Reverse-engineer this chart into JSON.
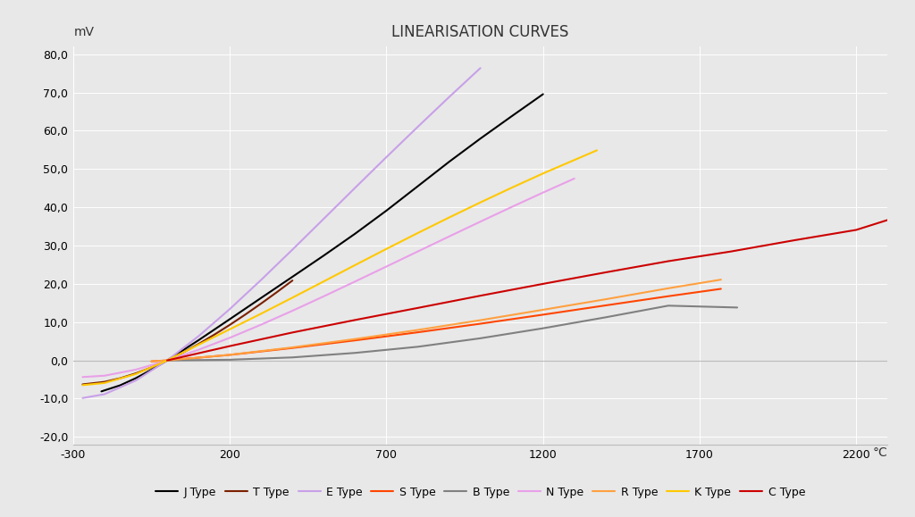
{
  "title": "LINEARISATION CURVES",
  "ylabel": "mV",
  "xlabel": "°C",
  "xlim": [
    -300,
    2300
  ],
  "ylim": [
    -22,
    82
  ],
  "xticks": [
    -300,
    200,
    700,
    1200,
    1700,
    2200
  ],
  "yticks": [
    -20,
    -10,
    0,
    10,
    20,
    30,
    40,
    50,
    60,
    70,
    80
  ],
  "background_color": "#e8e8e8",
  "plot_bg_color": "#e8e8e8",
  "grid_color": "#ffffff",
  "series": {
    "J Type": {
      "color": "#000000",
      "lw": 1.5,
      "temps": [
        -210,
        -150,
        -100,
        -50,
        0,
        100,
        200,
        300,
        400,
        500,
        600,
        700,
        800,
        900,
        1000,
        1100,
        1200
      ],
      "mv": [
        -8.095,
        -6.5,
        -4.633,
        -2.431,
        0,
        5.269,
        10.779,
        16.327,
        21.848,
        27.393,
        33.102,
        39.132,
        45.494,
        51.877,
        57.953,
        63.792,
        69.553
      ]
    },
    "T Type": {
      "color": "#7b2000",
      "lw": 1.5,
      "temps": [
        -270,
        -200,
        -150,
        -100,
        -50,
        0,
        50,
        100,
        150,
        200,
        250,
        300,
        350,
        400
      ],
      "mv": [
        -6.258,
        -5.603,
        -4.648,
        -3.379,
        -1.819,
        0,
        2.036,
        4.279,
        6.704,
        9.288,
        12.013,
        14.862,
        17.819,
        20.872
      ]
    },
    "E Type": {
      "color": "#c8a0e8",
      "lw": 1.5,
      "temps": [
        -270,
        -200,
        -100,
        0,
        100,
        200,
        300,
        400,
        500,
        600,
        700,
        800,
        900,
        1000
      ],
      "mv": [
        -9.835,
        -8.825,
        -5.237,
        0,
        6.319,
        13.421,
        21.036,
        28.946,
        37.005,
        45.093,
        53.112,
        61.017,
        68.787,
        76.373
      ]
    },
    "S Type": {
      "color": "#ff4500",
      "lw": 1.5,
      "temps": [
        -50,
        0,
        200,
        400,
        600,
        800,
        1000,
        1200,
        1400,
        1600,
        1768
      ],
      "mv": [
        -0.236,
        0,
        1.441,
        3.251,
        5.239,
        7.345,
        9.587,
        11.951,
        14.373,
        16.771,
        18.693
      ]
    },
    "B Type": {
      "color": "#808080",
      "lw": 1.5,
      "temps": [
        0,
        200,
        400,
        600,
        800,
        1000,
        1200,
        1400,
        1600,
        1820
      ],
      "mv": [
        0,
        0.178,
        0.787,
        1.962,
        3.564,
        5.78,
        8.393,
        11.263,
        14.302,
        13.82
      ]
    },
    "N Type": {
      "color": "#e8a0e8",
      "lw": 1.5,
      "temps": [
        -270,
        -200,
        -100,
        0,
        100,
        200,
        300,
        400,
        500,
        600,
        700,
        800,
        900,
        1000,
        1100,
        1200,
        1300
      ],
      "mv": [
        -4.345,
        -3.99,
        -2.407,
        0,
        2.774,
        5.913,
        9.341,
        12.974,
        16.748,
        20.613,
        24.527,
        28.455,
        32.371,
        36.256,
        40.087,
        43.846,
        47.513
      ]
    },
    "R Type": {
      "color": "#ffa040",
      "lw": 1.5,
      "temps": [
        -50,
        0,
        200,
        400,
        600,
        800,
        1000,
        1200,
        1400,
        1600,
        1768
      ],
      "mv": [
        -0.226,
        0,
        1.469,
        3.408,
        5.583,
        7.95,
        10.506,
        13.228,
        15.975,
        18.842,
        21.101
      ]
    },
    "K Type": {
      "color": "#ffc800",
      "lw": 1.5,
      "temps": [
        -270,
        -200,
        -100,
        0,
        100,
        200,
        300,
        400,
        500,
        600,
        700,
        800,
        900,
        1000,
        1100,
        1200,
        1372
      ],
      "mv": [
        -6.458,
        -5.891,
        -3.554,
        0,
        4.096,
        8.138,
        12.209,
        16.397,
        20.644,
        24.905,
        29.129,
        33.275,
        37.326,
        41.276,
        45.119,
        48.838,
        54.886
      ]
    },
    "C Type": {
      "color": "#cc0000",
      "lw": 1.5,
      "temps": [
        0,
        200,
        400,
        600,
        800,
        1000,
        1200,
        1400,
        1600,
        1800,
        2000,
        2200,
        2315
      ],
      "mv": [
        0,
        3.743,
        7.294,
        10.561,
        13.707,
        16.903,
        19.997,
        23.004,
        25.925,
        28.456,
        31.357,
        34.096,
        37.066
      ]
    }
  },
  "legend_order": [
    "J Type",
    "T Type",
    "E Type",
    "S Type",
    "B Type",
    "N Type",
    "R Type",
    "K Type",
    "C Type"
  ]
}
